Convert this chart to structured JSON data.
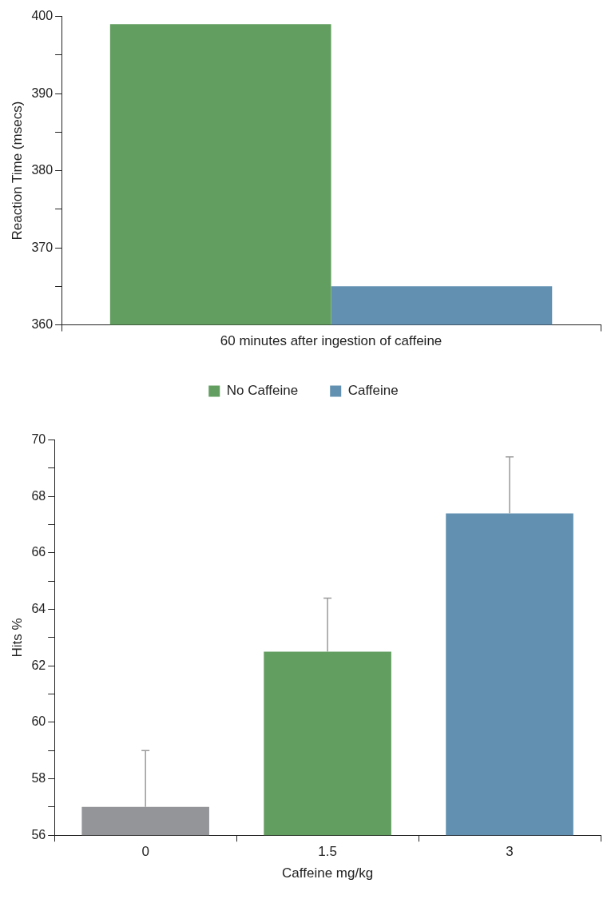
{
  "chart_data": [
    {
      "type": "bar",
      "ylabel": "Reaction Time (msecs)",
      "categories": [
        "60 minutes after ingestion of caffeine"
      ],
      "series": [
        {
          "name": "No Caffeine",
          "color": "#629e5f",
          "values": [
            399
          ]
        },
        {
          "name": "Caffeine",
          "color": "#6190b1",
          "values": [
            365
          ]
        }
      ],
      "ylim": [
        360,
        400
      ],
      "yticks": [
        360,
        {
          "value": 365,
          "label": null
        },
        370,
        {
          "value": 375,
          "label": null
        },
        380,
        {
          "value": 385,
          "label": null
        },
        390,
        {
          "value": 395,
          "label": null
        },
        400
      ],
      "grid": false,
      "legend": "bottom"
    },
    {
      "type": "bar",
      "xlabel": "Caffeine mg/kg",
      "ylabel": "Hits %",
      "categories": [
        "0",
        "1.5",
        "3"
      ],
      "values": [
        57,
        62.5,
        67.4
      ],
      "colors": [
        "#939598",
        "#629e5f",
        "#6190b1"
      ],
      "errors": [
        [
          57,
          59
        ],
        [
          62.5,
          64.4
        ],
        [
          67.4,
          69.4
        ]
      ],
      "ylim": [
        56,
        70
      ],
      "yticks": [
        56,
        {
          "value": 57,
          "label": null
        },
        58,
        {
          "value": 59,
          "label": null
        },
        60,
        {
          "value": 61,
          "label": null
        },
        62,
        {
          "value": 63,
          "label": null
        },
        64,
        {
          "value": 65,
          "label": null
        },
        66,
        {
          "value": 67,
          "label": null
        },
        68,
        {
          "value": 69,
          "label": null
        },
        70
      ],
      "grid": false,
      "legend": false
    }
  ]
}
